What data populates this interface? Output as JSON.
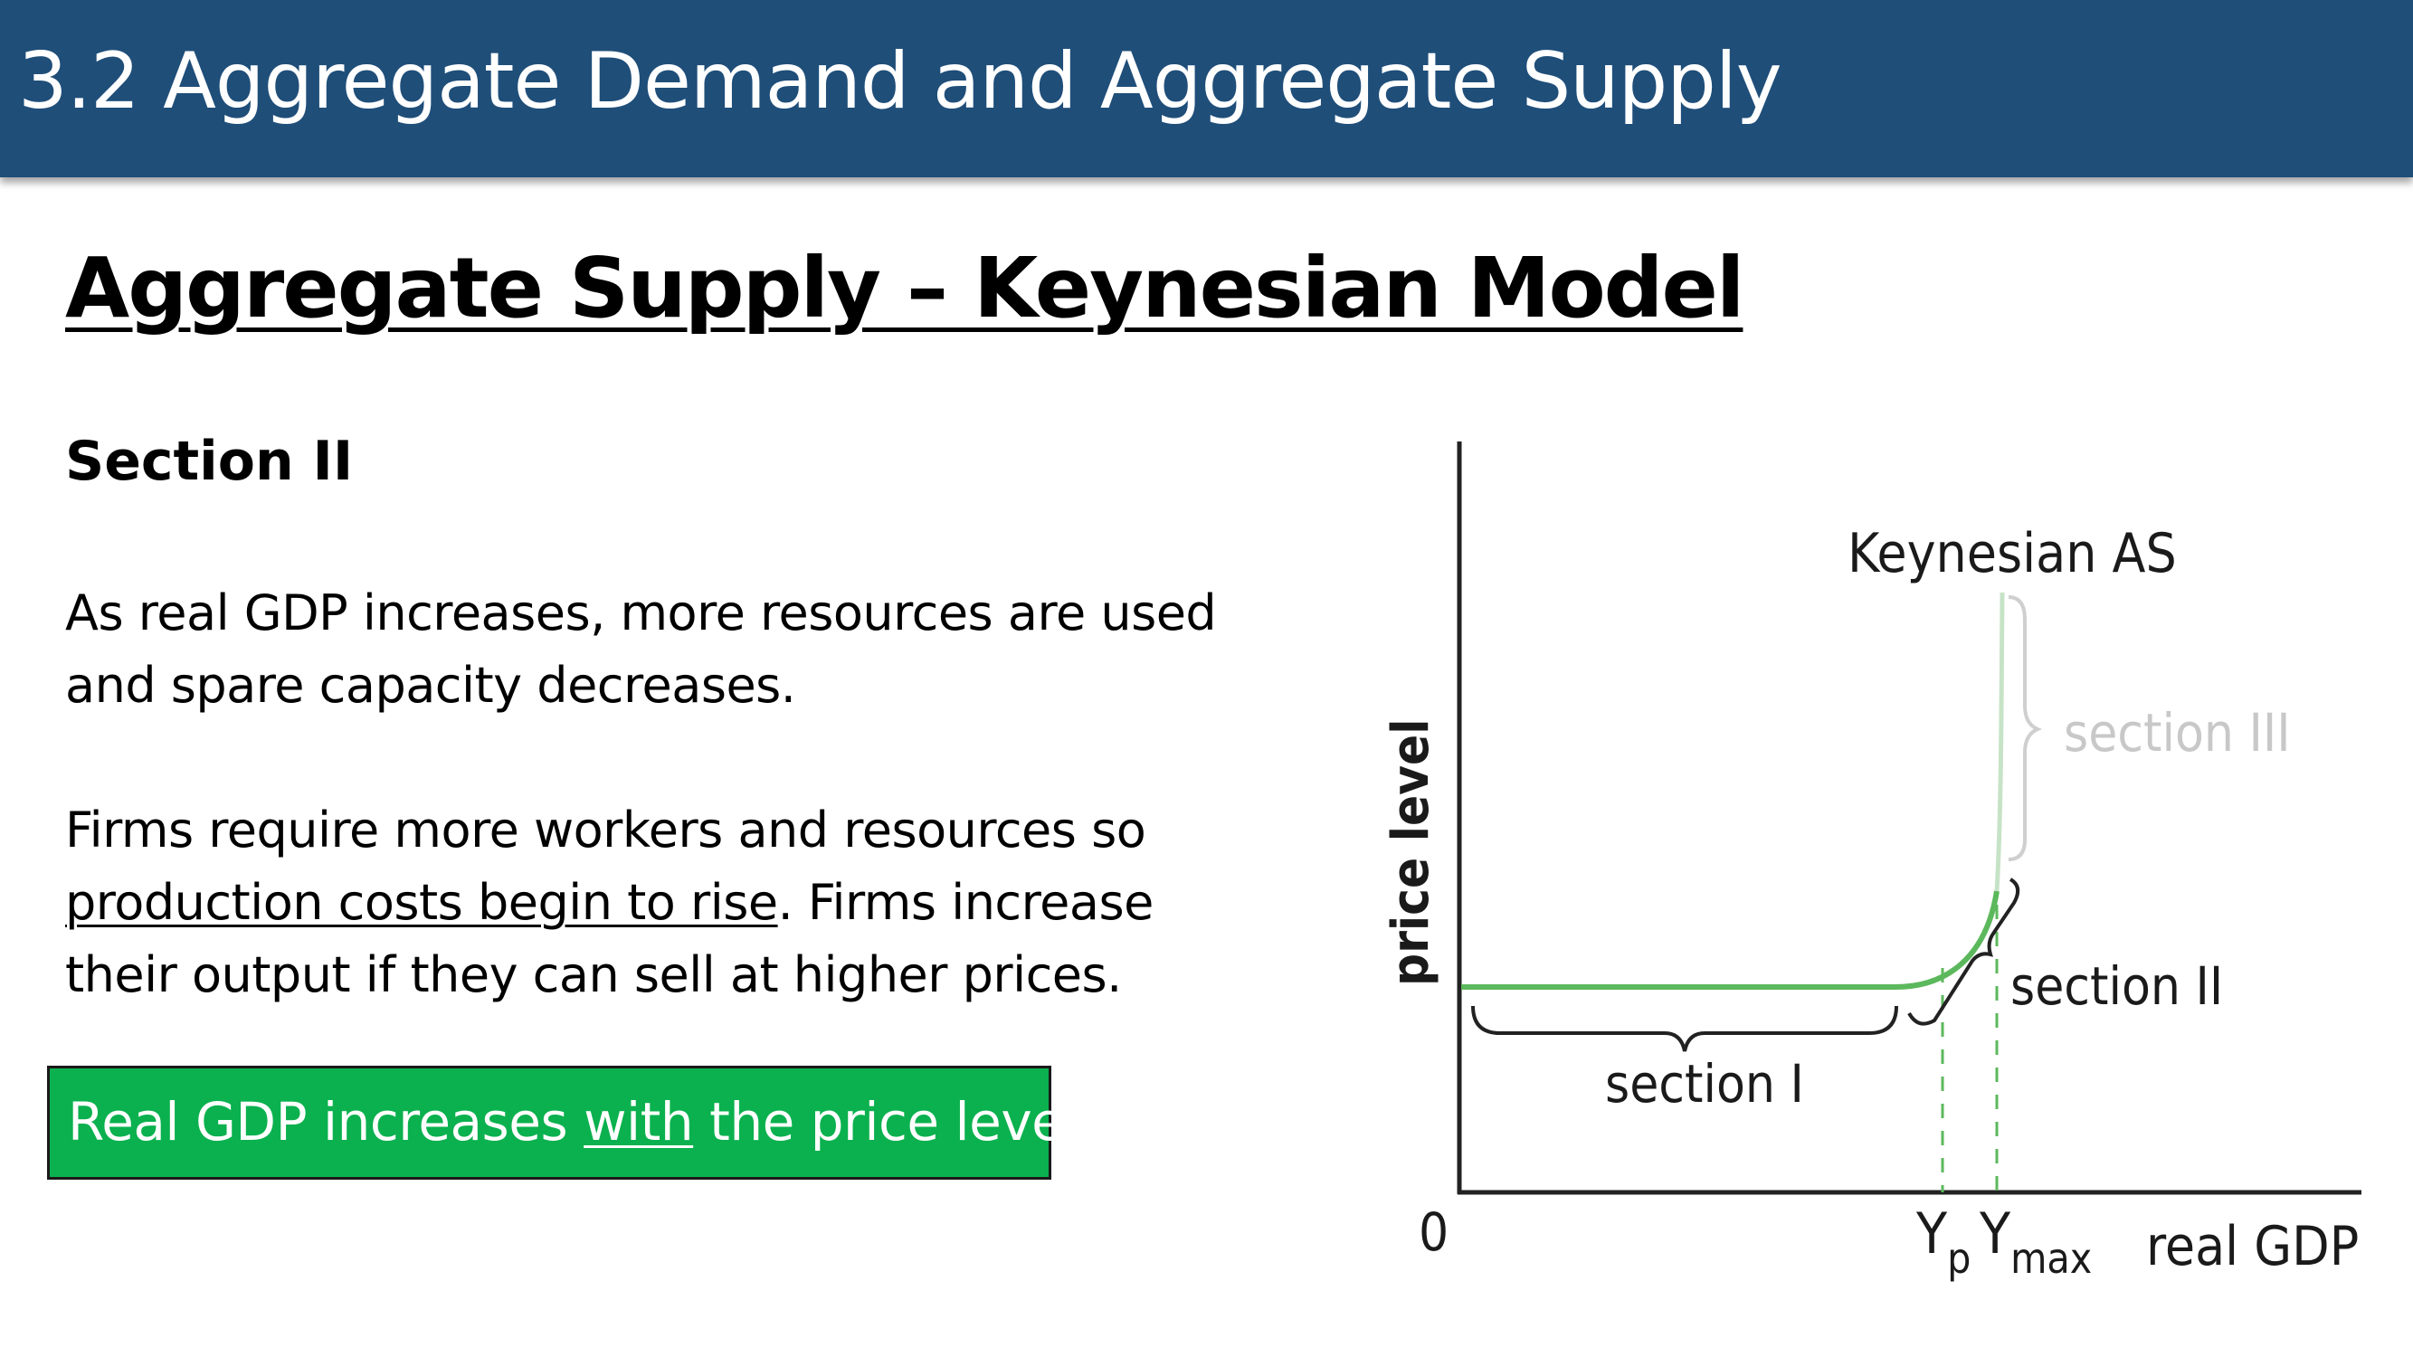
{
  "header": {
    "title": "3.2 Aggregate Demand and Aggregate Supply"
  },
  "heading": "Aggregate Supply – Keynesian Model",
  "section_label": "Section II",
  "paragraph1": "As real GDP increases, more resources are used and spare capacity decreases.",
  "paragraph2": {
    "part1": "Firms require more workers and resources so ",
    "underlined": "production costs begin to rise",
    "part2": ". Firms increase their output if they can sell at higher prices."
  },
  "callout": {
    "part1": "Real GDP increases ",
    "underlined": "with",
    "part2": " the price level",
    "bg_color": "#0ab14e"
  },
  "diagram": {
    "y_axis_label": "price level",
    "x_axis_label": "real GDP",
    "origin_label": "0",
    "curve_label": "Keynesian AS",
    "yp_label": "Y",
    "yp_sub": "p",
    "ymax_label": "Y",
    "ymax_sub": "max",
    "section1_label": "section I",
    "section2_label": "section II",
    "section3_label": "section III",
    "curve_color": "#5cb85c",
    "faded_color": "#c7e3c7"
  }
}
